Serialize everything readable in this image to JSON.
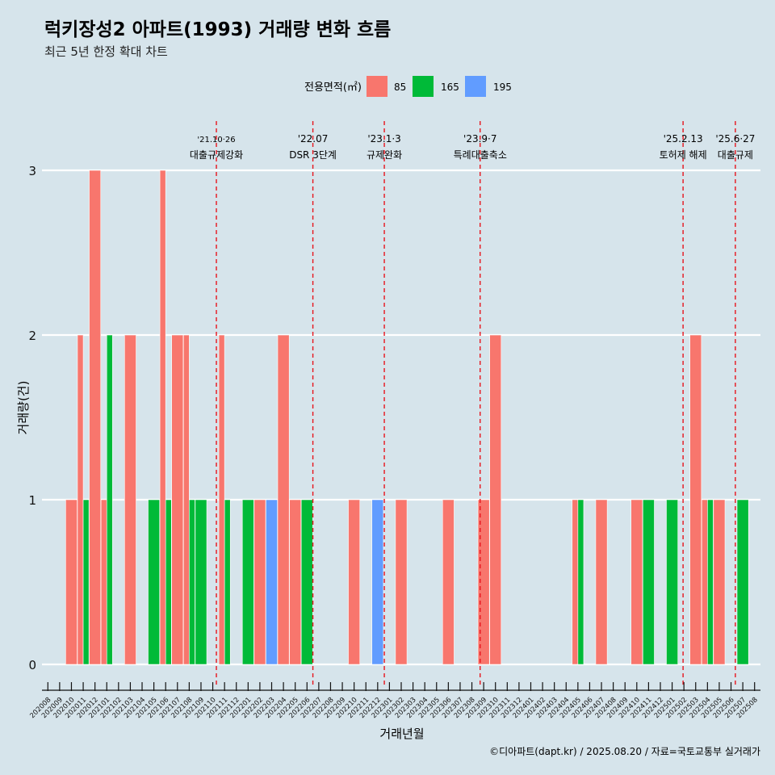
{
  "header": {
    "title": "럭키장성2 아파트(1993) 거래량 변화 흐름",
    "subtitle": "최근 5년 한정 확대 차트"
  },
  "legend": {
    "title": "전용면적(㎡)",
    "items": [
      {
        "label": "85",
        "color": "#f8766d"
      },
      {
        "label": "165",
        "color": "#00ba38"
      },
      {
        "label": "195",
        "color": "#619cff"
      }
    ]
  },
  "footer": {
    "credit": "©디아파트(dapt.kr) / 2025.08.20 / 자료=국토교통부 실거래가"
  },
  "chart_data": {
    "type": "bar",
    "title": "럭키장성2 아파트(1993) 거래량 변화 흐름",
    "xlabel": "거래년월",
    "ylabel": "거래량(건)",
    "ylim": [
      0,
      3
    ],
    "yticks": [
      0,
      1,
      2,
      3
    ],
    "grid": "horizontal",
    "legend_position": "top",
    "categories": [
      "202008",
      "202009",
      "202010",
      "202011",
      "202012",
      "202101",
      "202102",
      "202103",
      "202104",
      "202105",
      "202106",
      "202107",
      "202108",
      "202109",
      "202110",
      "202111",
      "202112",
      "202201",
      "202202",
      "202203",
      "202204",
      "202205",
      "202206",
      "202207",
      "202208",
      "202209",
      "202210",
      "202211",
      "202212",
      "202301",
      "202302",
      "202303",
      "202304",
      "202305",
      "202306",
      "202307",
      "202308",
      "202309",
      "202310",
      "202311",
      "202312",
      "202401",
      "202402",
      "202403",
      "202404",
      "202405",
      "202406",
      "202407",
      "202408",
      "202409",
      "202410",
      "202411",
      "202412",
      "202501",
      "202502",
      "202503",
      "202504",
      "202505",
      "202506",
      "202507",
      "202508"
    ],
    "bars": [
      {
        "month": "202010",
        "series": "85",
        "value": 1
      },
      {
        "month": "202011",
        "series": "85",
        "value": 2
      },
      {
        "month": "202011",
        "series": "165",
        "value": 1
      },
      {
        "month": "202012",
        "series": "85",
        "value": 3
      },
      {
        "month": "202101",
        "series": "85",
        "value": 1
      },
      {
        "month": "202101",
        "series": "165",
        "value": 2
      },
      {
        "month": "202103",
        "series": "85",
        "value": 2
      },
      {
        "month": "202105",
        "series": "165",
        "value": 1
      },
      {
        "month": "202106",
        "series": "85",
        "value": 3
      },
      {
        "month": "202106",
        "series": "165",
        "value": 1
      },
      {
        "month": "202107",
        "series": "85",
        "value": 2
      },
      {
        "month": "202108",
        "series": "85",
        "value": 2
      },
      {
        "month": "202108",
        "series": "165",
        "value": 1
      },
      {
        "month": "202109",
        "series": "165",
        "value": 1
      },
      {
        "month": "202111",
        "series": "85",
        "value": 2
      },
      {
        "month": "202111",
        "series": "165",
        "value": 1
      },
      {
        "month": "202201",
        "series": "165",
        "value": 1
      },
      {
        "month": "202202",
        "series": "85",
        "value": 1
      },
      {
        "month": "202203",
        "series": "195",
        "value": 1
      },
      {
        "month": "202204",
        "series": "85",
        "value": 2
      },
      {
        "month": "202205",
        "series": "85",
        "value": 1
      },
      {
        "month": "202206",
        "series": "165",
        "value": 1
      },
      {
        "month": "202210",
        "series": "85",
        "value": 1
      },
      {
        "month": "202212",
        "series": "195",
        "value": 1
      },
      {
        "month": "202302",
        "series": "85",
        "value": 1
      },
      {
        "month": "202306",
        "series": "85",
        "value": 1
      },
      {
        "month": "202309",
        "series": "85",
        "value": 1
      },
      {
        "month": "202310",
        "series": "85",
        "value": 2
      },
      {
        "month": "202405",
        "series": "85",
        "value": 1
      },
      {
        "month": "202405",
        "series": "165",
        "value": 1
      },
      {
        "month": "202407",
        "series": "85",
        "value": 1
      },
      {
        "month": "202410",
        "series": "85",
        "value": 1
      },
      {
        "month": "202411",
        "series": "165",
        "value": 1
      },
      {
        "month": "202501",
        "series": "165",
        "value": 1
      },
      {
        "month": "202503",
        "series": "85",
        "value": 2
      },
      {
        "month": "202504",
        "series": "85",
        "value": 1
      },
      {
        "month": "202504",
        "series": "165",
        "value": 1
      },
      {
        "month": "202505",
        "series": "85",
        "value": 1
      },
      {
        "month": "202507",
        "series": "165",
        "value": 1
      }
    ],
    "annotations": [
      {
        "date": "2021-10-26",
        "label_line1": "'21.10·26",
        "label_line2": "대출규제강화"
      },
      {
        "date": "2022-07-01",
        "label_line1": "'22.07",
        "label_line2": "DSR 3단계"
      },
      {
        "date": "2023-01-03",
        "label_line1": "'23.1·3",
        "label_line2": "규제완화"
      },
      {
        "date": "2023-09-07",
        "label_line1": "'23.9·7",
        "label_line2": "특례대출축소"
      },
      {
        "date": "2025-02-13",
        "label_line1": "'25.2.13",
        "label_line2": "토허제 해제"
      },
      {
        "date": "2025-06-27",
        "label_line1": "'25.6·27",
        "label_line2": "대출규제"
      }
    ]
  }
}
